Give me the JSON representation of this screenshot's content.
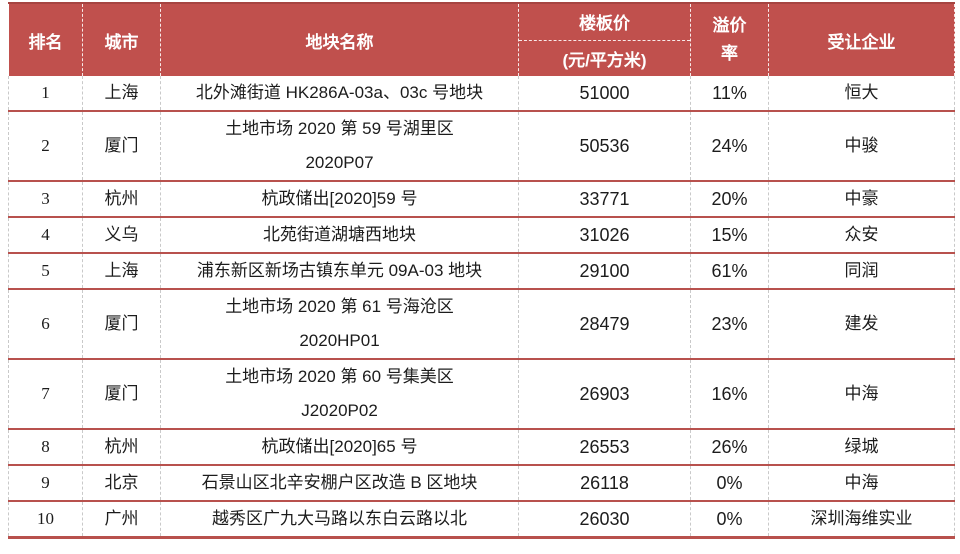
{
  "colors": {
    "accent_red": "#c0504d",
    "row_line_red": "#b8514d",
    "header_top_line": "#a64441",
    "column_dash_gray": "#c9c9c9",
    "header_text": "#ffffff",
    "body_text": "#1c1c1c",
    "background": "#ffffff"
  },
  "chart_data": {
    "type": "table",
    "columns": [
      "排名",
      "城市",
      "地块名称",
      "楼板价(元/平方米)",
      "溢价率",
      "受让企业"
    ],
    "headers": {
      "rank": "排名",
      "city": "城市",
      "parcel": "地块名称",
      "price_line1": "楼板价",
      "price_line2": "(元/平方米)",
      "premium": "溢价\n率",
      "company": "受让企业"
    },
    "rows": [
      {
        "rank": "1",
        "city": "上海",
        "parcel": "北外滩街道 HK286A-03a、03c 号地块",
        "price": "51000",
        "premium": "11%",
        "company": "恒大"
      },
      {
        "rank": "2",
        "city": "厦门",
        "parcel": "土地市场 2020 第 59 号湖里区\n2020P07",
        "price": "50536",
        "premium": "24%",
        "company": "中骏"
      },
      {
        "rank": "3",
        "city": "杭州",
        "parcel": "杭政储出[2020]59 号",
        "price": "33771",
        "premium": "20%",
        "company": "中豪"
      },
      {
        "rank": "4",
        "city": "义乌",
        "parcel": "北苑街道湖塘西地块",
        "price": "31026",
        "premium": "15%",
        "company": "众安"
      },
      {
        "rank": "5",
        "city": "上海",
        "parcel": "浦东新区新场古镇东单元 09A-03 地块",
        "price": "29100",
        "premium": "61%",
        "company": "同润"
      },
      {
        "rank": "6",
        "city": "厦门",
        "parcel": "土地市场 2020 第 61 号海沧区\n2020HP01",
        "price": "28479",
        "premium": "23%",
        "company": "建发"
      },
      {
        "rank": "7",
        "city": "厦门",
        "parcel": "土地市场 2020 第 60 号集美区\nJ2020P02",
        "price": "26903",
        "premium": "16%",
        "company": "中海"
      },
      {
        "rank": "8",
        "city": "杭州",
        "parcel": "杭政储出[2020]65 号",
        "price": "26553",
        "premium": "26%",
        "company": "绿城"
      },
      {
        "rank": "9",
        "city": "北京",
        "parcel": "石景山区北辛安棚户区改造 B 区地块",
        "price": "26118",
        "premium": "0%",
        "company": "中海"
      },
      {
        "rank": "10",
        "city": "广州",
        "parcel": "越秀区广九大马路以东白云路以北",
        "price": "26030",
        "premium": "0%",
        "company": "深圳海维实业"
      }
    ]
  }
}
